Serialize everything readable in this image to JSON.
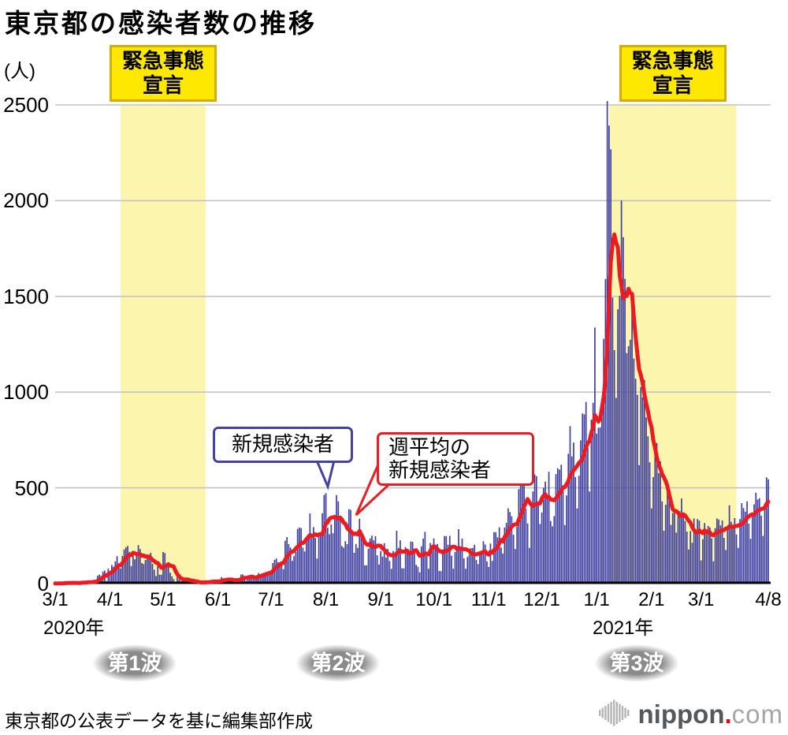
{
  "title": "東京都の感染者数の推移",
  "y_axis": {
    "unit": "(人)",
    "ticks": [
      0,
      500,
      1000,
      1500,
      2000,
      2500
    ],
    "max": 2500
  },
  "x_axis": {
    "ticks": [
      {
        "label": "3/1",
        "date": "2020-03-01"
      },
      {
        "label": "4/1",
        "date": "2020-04-01"
      },
      {
        "label": "5/1",
        "date": "2020-05-01"
      },
      {
        "label": "6/1",
        "date": "2020-06-01"
      },
      {
        "label": "7/1",
        "date": "2020-07-01"
      },
      {
        "label": "8/1",
        "date": "2020-08-01"
      },
      {
        "label": "9/1",
        "date": "2020-09-01"
      },
      {
        "label": "10/1",
        "date": "2020-10-01"
      },
      {
        "label": "11/1",
        "date": "2020-11-01"
      },
      {
        "label": "12/1",
        "date": "2020-12-01"
      },
      {
        "label": "1/1",
        "date": "2021-01-01"
      },
      {
        "label": "2/1",
        "date": "2021-02-01"
      },
      {
        "label": "3/1",
        "date": "2021-03-01"
      },
      {
        "label": "4/8",
        "date": "2021-04-08"
      }
    ],
    "year_labels": [
      {
        "text": "2020年",
        "position": "under-3/1"
      },
      {
        "text": "2021年",
        "position": "under-1/1"
      }
    ]
  },
  "emergency": {
    "line1": "緊急事態",
    "line2": "宣言"
  },
  "annotations": {
    "daily_label": "新規感染者",
    "avg_label_line1": "週平均の",
    "avg_label_line2": "新規感染者"
  },
  "waves": {
    "wave1": "第1波",
    "wave2": "第2波",
    "wave3": "第3波"
  },
  "footer": {
    "source": "東京都の公表データを基に編集部作成",
    "logo": {
      "name": "nippon",
      "dot": ".",
      "tld": "com"
    }
  },
  "colors": {
    "bar": "#3f3f9f",
    "avg_line": "#ec1a21",
    "band": "#fcf5ae",
    "gridline": "#c4c4c4",
    "axis": "#000000",
    "emergency_box_fill": "#ffe800",
    "emergency_box_border": "#d2ae00"
  },
  "chart_data": {
    "type": "bar",
    "title": "東京都の感染者数の推移",
    "ylabel": "(人)",
    "ylim": [
      0,
      2500
    ],
    "grid": "horizontal",
    "start_date": "2020-03-01",
    "end_date": "2021-04-08",
    "emergency_bands": [
      {
        "from": "2020-04-07",
        "to": "2020-05-25"
      },
      {
        "from": "2021-01-08",
        "to": "2021-03-21"
      }
    ],
    "series": [
      {
        "name": "新規感染者",
        "type": "bar",
        "values_key": "daily"
      },
      {
        "name": "週平均の新規感染者",
        "type": "line",
        "derived": "7-day moving average of daily"
      }
    ],
    "daily": [
      1,
      0,
      1,
      3,
      2,
      3,
      6,
      4,
      0,
      5,
      7,
      2,
      2,
      4,
      2,
      6,
      12,
      9,
      7,
      11,
      7,
      3,
      16,
      17,
      41,
      47,
      40,
      63,
      68,
      13,
      78,
      66,
      97,
      89,
      116,
      143,
      83,
      80,
      144,
      178,
      189,
      197,
      166,
      91,
      159,
      127,
      149,
      201,
      181,
      107,
      102,
      123,
      132,
      134,
      161,
      103,
      72,
      39,
      112,
      47,
      46,
      165,
      160,
      93,
      87,
      57,
      38,
      23,
      9,
      36,
      22,
      15,
      28,
      10,
      30,
      9,
      14,
      5,
      10,
      5,
      11,
      3,
      2,
      2,
      14,
      8,
      10,
      11,
      15,
      9,
      14,
      5,
      13,
      12,
      34,
      28,
      20,
      26,
      14,
      13,
      12,
      18,
      22,
      25,
      24,
      47,
      48,
      27,
      16,
      41,
      35,
      39,
      35,
      29,
      31,
      55,
      48,
      54,
      57,
      60,
      58,
      54,
      67,
      107,
      124,
      131,
      111,
      102,
      106,
      75,
      224,
      243,
      206,
      188,
      119,
      143,
      165,
      286,
      293,
      290,
      188,
      168,
      237,
      238,
      366,
      260,
      295,
      239,
      131,
      266,
      250,
      367,
      463,
      472,
      292,
      258,
      309,
      263,
      360,
      462,
      429,
      331,
      197,
      188,
      222,
      206,
      389,
      385,
      260,
      161,
      207,
      186,
      339,
      258,
      256,
      95,
      95,
      182,
      236,
      250,
      226,
      247,
      148,
      100,
      170,
      141,
      211,
      136,
      181,
      118,
      77,
      170,
      149,
      276,
      187,
      226,
      80,
      80,
      191,
      163,
      171,
      220,
      218,
      162,
      98,
      88,
      59,
      195,
      235,
      270,
      144,
      78,
      212,
      194,
      235,
      196,
      207,
      66,
      65,
      177,
      248,
      248,
      203,
      249,
      146,
      78,
      166,
      177,
      284,
      184,
      235,
      132,
      78,
      139,
      150,
      185,
      186,
      203,
      124,
      102,
      158,
      171,
      221,
      204,
      116,
      87,
      209,
      118,
      269,
      269,
      242,
      294,
      189,
      157,
      293,
      317,
      393,
      374,
      352,
      255,
      180,
      298,
      493,
      534,
      522,
      539,
      391,
      314,
      186,
      401,
      481,
      570,
      561,
      418,
      311,
      372,
      500,
      533,
      449,
      584,
      327,
      299,
      352,
      572,
      602,
      595,
      621,
      480,
      305,
      460,
      678,
      822,
      664,
      736,
      556,
      392,
      563,
      748,
      888,
      884,
      949,
      708,
      481,
      856,
      944,
      1337,
      783,
      814,
      816,
      884,
      1278,
      1591,
      2520,
      2392,
      2268,
      1494,
      1219,
      970,
      1433,
      1502,
      2001,
      1809,
      1592,
      1204,
      1240,
      1274,
      1471,
      1175,
      1070,
      986,
      618,
      1026,
      973,
      1064,
      868,
      769,
      633,
      393,
      556,
      676,
      734,
      577,
      639,
      429,
      276,
      412,
      491,
      434,
      307,
      369,
      371,
      266,
      350,
      378,
      445,
      353,
      327,
      272,
      178,
      275,
      213,
      340,
      270,
      337,
      329,
      121,
      232,
      316,
      279,
      301,
      293,
      237,
      116,
      290,
      340,
      335,
      304,
      330,
      239,
      175,
      300,
      409,
      323,
      303,
      342,
      256,
      187,
      337,
      420,
      394,
      376,
      430,
      313,
      234,
      364,
      414,
      475,
      440,
      446,
      355,
      249,
      399,
      555,
      545
    ]
  }
}
